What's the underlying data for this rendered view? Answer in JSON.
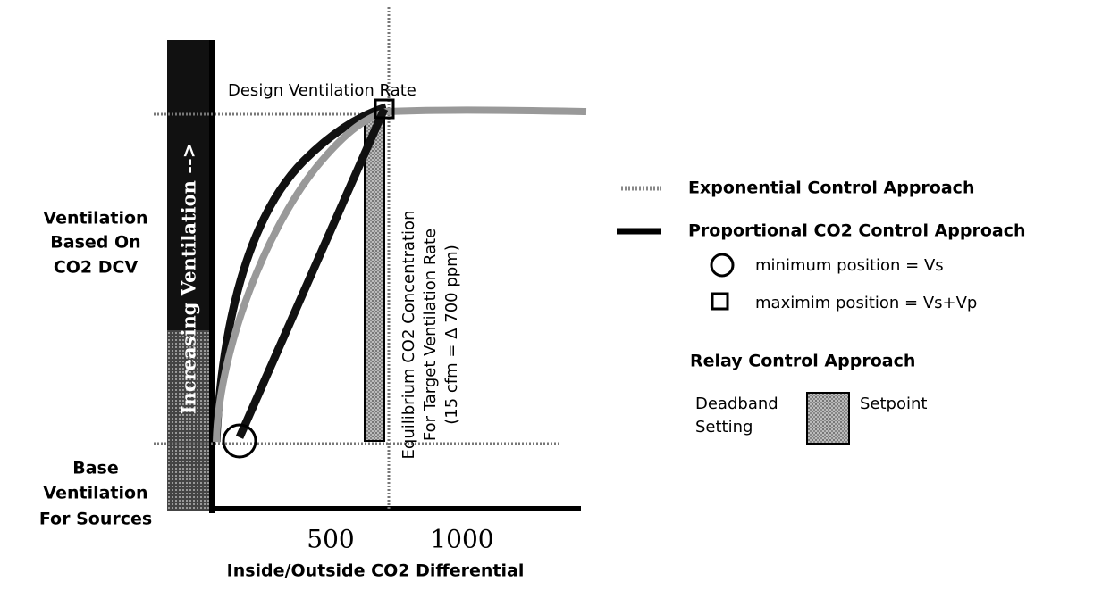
{
  "diagram": {
    "y_axis_label": "Increasing Ventilation -->",
    "annotation_top": "Design Ventilation Rate",
    "upper_label": [
      "Ventilation",
      "Based On",
      "CO2 DCV"
    ],
    "lower_label": [
      "Base",
      "Ventilation",
      "For Sources"
    ],
    "x_ticks": [
      "500",
      "1000"
    ],
    "x_axis_label": "Inside/Outside CO2 Differential",
    "equilibrium_note": [
      "Equilibrium CO2 Concentration",
      "For Target Ventilation Rate",
      "(15 cfm = Δ 700 ppm)"
    ],
    "legend": {
      "exponential": "Exponential Control Approach",
      "proportional": "Proportional CO2 Control Approach",
      "minimum": "minimum position = Vs",
      "maximum": "maximim position = Vs+Vp",
      "relay": "Relay Control Approach",
      "deadband": [
        "Deadband",
        "Setting"
      ],
      "setpoint": "Setpoint"
    }
  }
}
